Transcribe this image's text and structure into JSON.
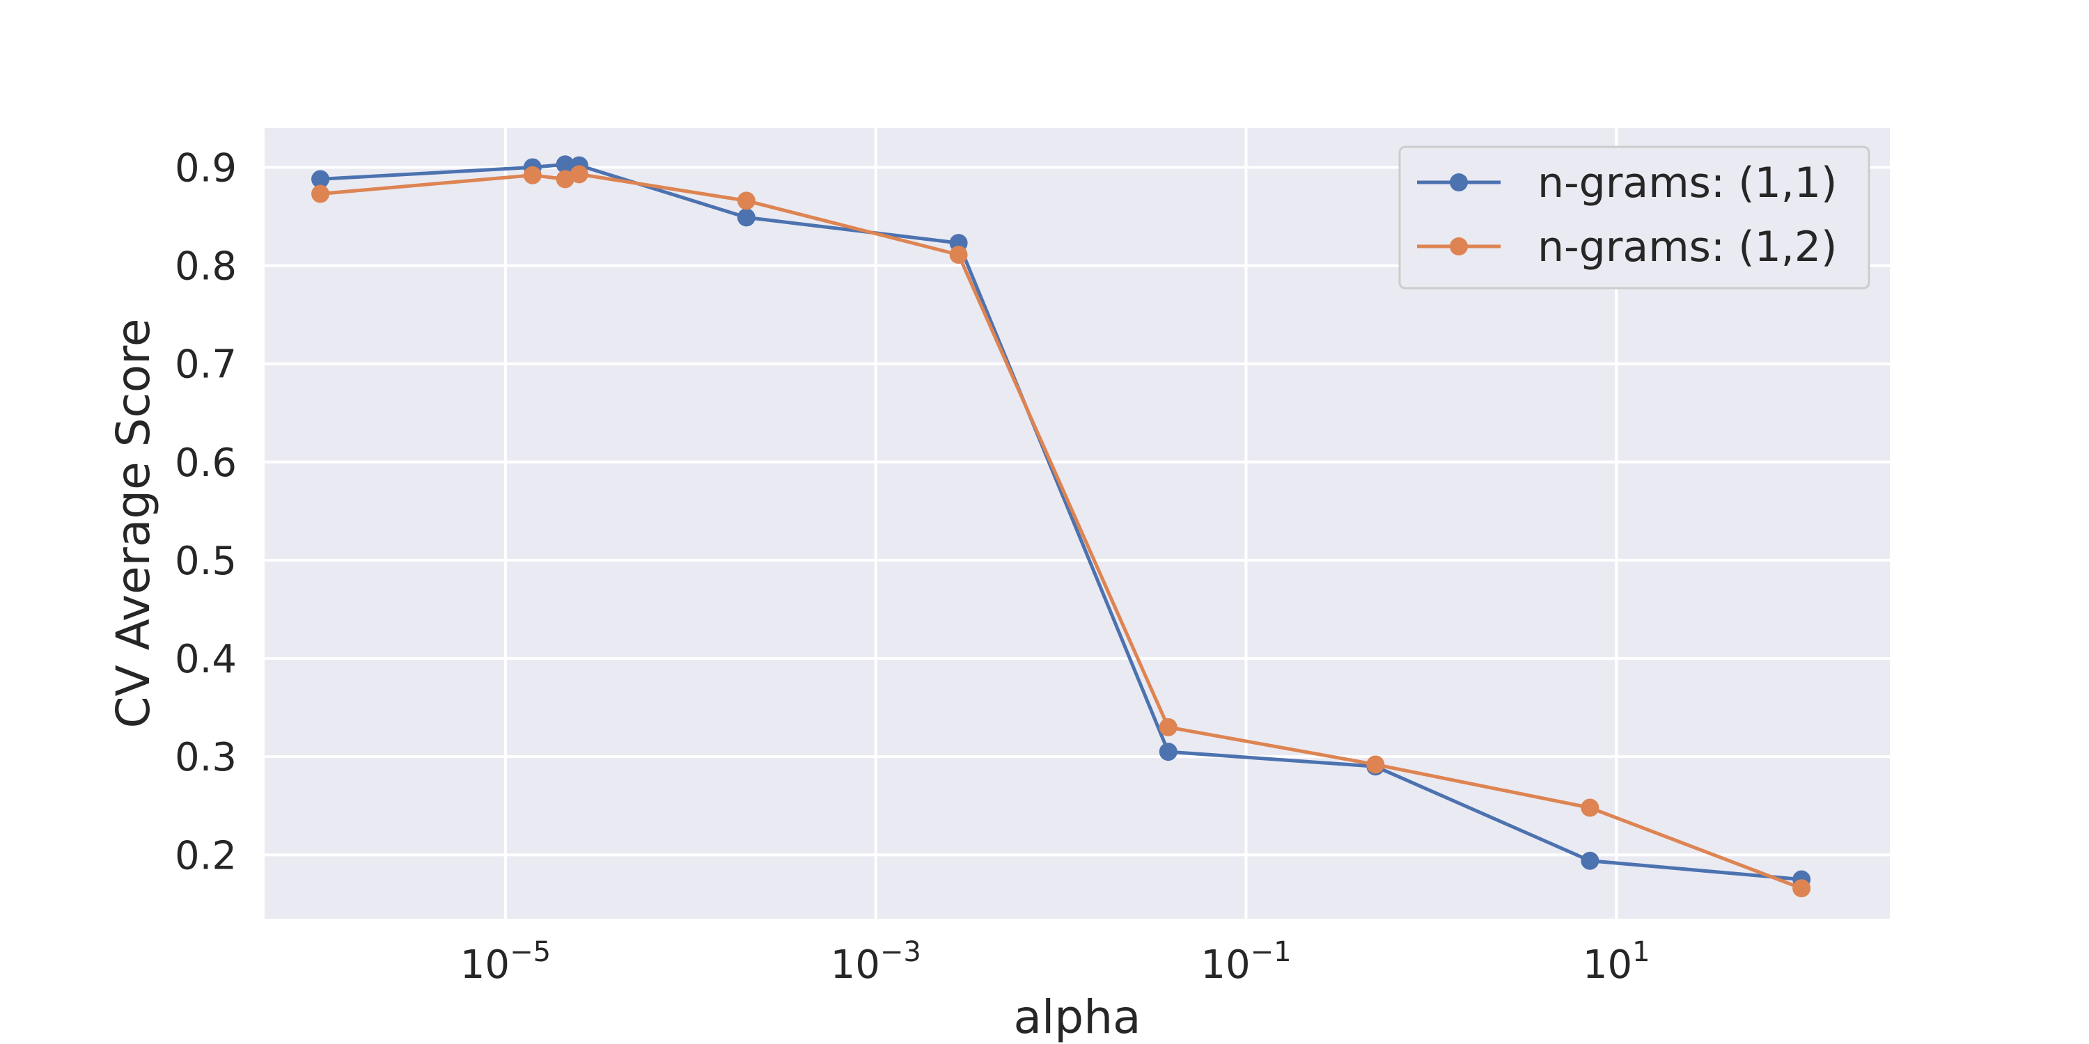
{
  "chart_data": {
    "type": "line",
    "title": "",
    "xlabel": "alpha",
    "ylabel": "CV Average Score",
    "xscale": "log",
    "xlim": [
      5e-07,
      300
    ],
    "ylim": [
      0.135,
      0.94
    ],
    "x_ticks": [
      {
        "value": 1e-05,
        "base": "10",
        "exp": "−5"
      },
      {
        "value": 0.001,
        "base": "10",
        "exp": "−3"
      },
      {
        "value": 0.1,
        "base": "10",
        "exp": "−1"
      },
      {
        "value": 10,
        "base": "10",
        "exp": "1"
      }
    ],
    "y_ticks": [
      {
        "value": 0.2,
        "label": "0.2"
      },
      {
        "value": 0.3,
        "label": "0.3"
      },
      {
        "value": 0.4,
        "label": "0.4"
      },
      {
        "value": 0.5,
        "label": "0.5"
      },
      {
        "value": 0.6,
        "label": "0.6"
      },
      {
        "value": 0.7,
        "label": "0.7"
      },
      {
        "value": 0.8,
        "label": "0.8"
      },
      {
        "value": 0.9,
        "label": "0.9"
      }
    ],
    "grid": true,
    "legend_position": "top-right",
    "series": [
      {
        "name": "n-grams: (1,1)",
        "color": "#4c72b0",
        "points": [
          {
            "x": 1e-06,
            "y": 0.888
          },
          {
            "x": 1.4e-05,
            "y": 0.9
          },
          {
            "x": 2.1e-05,
            "y": 0.903
          },
          {
            "x": 2.5e-05,
            "y": 0.902
          },
          {
            "x": 0.0002,
            "y": 0.849
          },
          {
            "x": 0.0028,
            "y": 0.823
          },
          {
            "x": 0.038,
            "y": 0.305
          },
          {
            "x": 0.5,
            "y": 0.29
          },
          {
            "x": 7.2,
            "y": 0.194
          },
          {
            "x": 100,
            "y": 0.175
          }
        ]
      },
      {
        "name": "n-grams: (1,2)",
        "color": "#dd8452",
        "points": [
          {
            "x": 1e-06,
            "y": 0.873
          },
          {
            "x": 1.4e-05,
            "y": 0.892
          },
          {
            "x": 2.1e-05,
            "y": 0.888
          },
          {
            "x": 2.5e-05,
            "y": 0.893
          },
          {
            "x": 0.0002,
            "y": 0.866
          },
          {
            "x": 0.0028,
            "y": 0.811
          },
          {
            "x": 0.038,
            "y": 0.33
          },
          {
            "x": 0.5,
            "y": 0.292
          },
          {
            "x": 7.2,
            "y": 0.248
          },
          {
            "x": 100,
            "y": 0.166
          }
        ]
      }
    ]
  }
}
